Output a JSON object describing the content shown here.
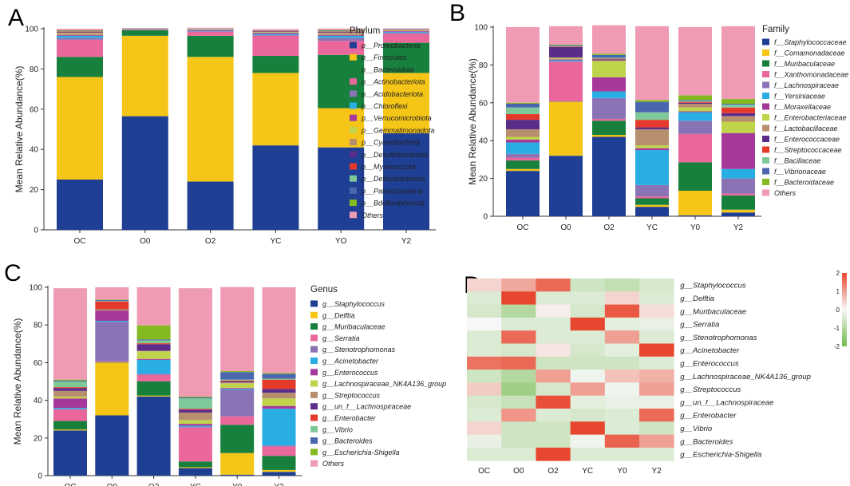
{
  "figure": {
    "panel_letters": [
      "A",
      "B",
      "C",
      "D"
    ]
  },
  "chart_data": [
    {
      "type": "bar",
      "stacked": true,
      "panel": "A",
      "title": "",
      "xlabel": "",
      "ylabel": "Mean Relative Abundance(%)",
      "ylim": [
        0,
        100
      ],
      "yticks": [
        0,
        20,
        40,
        60,
        80,
        100
      ],
      "legend_title": "Phylum",
      "legend_position": "right",
      "categories": [
        "OC",
        "O0",
        "O2",
        "YC",
        "YO",
        "Y2"
      ],
      "series": [
        {
          "name": "p__Proteobacteria",
          "color": "#1f3f94",
          "values": [
            25,
            56.5,
            24,
            42,
            41,
            48
          ]
        },
        {
          "name": "p__Firmicutes",
          "color": "#f5c518",
          "values": [
            51,
            40,
            62,
            36,
            19.5,
            30
          ]
        },
        {
          "name": "p__Bacteroidota",
          "color": "#17803d",
          "values": [
            10,
            2.8,
            10.5,
            8.5,
            26.5,
            15
          ]
        },
        {
          "name": "p__Actinobacteriota",
          "color": "#e9679b",
          "values": [
            8.5,
            0.3,
            2,
            10,
            7,
            4.5
          ]
        },
        {
          "name": "p__Acidobacteriota",
          "color": "#8a73b5",
          "values": [
            1,
            0.1,
            0.3,
            0.5,
            1.5,
            0.6
          ]
        },
        {
          "name": "p__Chloroflexi",
          "color": "#29aee3",
          "values": [
            1,
            0.1,
            0.2,
            0.5,
            1,
            0.4
          ]
        },
        {
          "name": "p__Verrucomicrobiota",
          "color": "#a6389a",
          "values": [
            0.5,
            0.05,
            0.2,
            0.5,
            0.5,
            0.3
          ]
        },
        {
          "name": "p__Gemmatimonadota",
          "color": "#bfd44a",
          "values": [
            0.5,
            0.05,
            0.1,
            0.3,
            0.5,
            0.3
          ]
        },
        {
          "name": "p__Cyanobacteria",
          "color": "#b88f6e",
          "values": [
            0.5,
            0.05,
            0.2,
            0.3,
            0.4,
            0.2
          ]
        },
        {
          "name": "p__Desulfobacterota",
          "color": "#5a2d8a",
          "values": [
            0.3,
            0.05,
            0.1,
            0.2,
            0.4,
            0.2
          ]
        },
        {
          "name": "p__Myxococcota",
          "color": "#e53a2b",
          "values": [
            0.3,
            0.05,
            0.1,
            0.2,
            0.3,
            0.1
          ]
        },
        {
          "name": "p__Deferribacterota",
          "color": "#7fc89a",
          "values": [
            0.2,
            0.05,
            0.1,
            0.1,
            0.3,
            0.1
          ]
        },
        {
          "name": "p__Patescibacteria",
          "color": "#4a66ae",
          "values": [
            0.2,
            0.05,
            0.1,
            0.1,
            0.3,
            0.1
          ]
        },
        {
          "name": "p__Bdellovibrionota",
          "color": "#84b91f",
          "values": [
            0.2,
            0.05,
            0.1,
            0.1,
            0.2,
            0.1
          ]
        },
        {
          "name": "Others",
          "color": "#ef9bb3",
          "values": [
            0.8,
            0.2,
            0.5,
            0.5,
            0.7,
            0.3
          ]
        }
      ]
    },
    {
      "type": "bar",
      "stacked": true,
      "panel": "B",
      "title": "",
      "xlabel": "",
      "ylabel": "Mean Relative Abundance(%)",
      "ylim": [
        0,
        100
      ],
      "yticks": [
        0,
        20,
        40,
        60,
        80,
        100
      ],
      "legend_title": "Family",
      "legend_position": "right",
      "categories": [
        "OC",
        "O0",
        "O2",
        "YC",
        "Y0",
        "Y2"
      ],
      "series": [
        {
          "name": "f__Staphylococcaceae",
          "color": "#1f3f94",
          "values": [
            24,
            32,
            42,
            5,
            0.5,
            2
          ]
        },
        {
          "name": "f__Comamonadaceae",
          "color": "#f5c518",
          "values": [
            1,
            28.5,
            1,
            1,
            13,
            1.5
          ]
        },
        {
          "name": "f__Muribaculaceae",
          "color": "#17803d",
          "values": [
            4.5,
            0.2,
            7.5,
            3.5,
            15,
            7.5
          ]
        },
        {
          "name": "f__Xanthomonadaceae",
          "color": "#e9679b",
          "values": [
            1.5,
            21,
            1,
            1,
            15,
            1
          ]
        },
        {
          "name": "f__Lachnospiraceae",
          "color": "#8a73b5",
          "values": [
            2,
            0.3,
            11,
            6,
            7,
            8
          ]
        },
        {
          "name": "f__Yersiniaceae",
          "color": "#29aee3",
          "values": [
            6,
            0.5,
            3.5,
            18.5,
            4.5,
            5
          ]
        },
        {
          "name": "f__Moraxellaceae",
          "color": "#a6389a",
          "values": [
            1.5,
            0.5,
            7.5,
            1,
            0.5,
            19
          ]
        },
        {
          "name": "f__Enterobacteriaceae",
          "color": "#bfd44a",
          "values": [
            1.5,
            0.5,
            8.5,
            1.5,
            2,
            6
          ]
        },
        {
          "name": "f__Lactobacillaceae",
          "color": "#b88f6e",
          "values": [
            4,
            0.5,
            0.5,
            8.5,
            2,
            3
          ]
        },
        {
          "name": "f__Enterococcaceae",
          "color": "#5a2d8a",
          "values": [
            5,
            5.5,
            0.5,
            1,
            0.5,
            1.5
          ]
        },
        {
          "name": "f__Streptococcaceae",
          "color": "#e53a2b",
          "values": [
            3,
            0.3,
            0.3,
            4,
            0.5,
            3
          ]
        },
        {
          "name": "f__Bacillaceae",
          "color": "#7fc89a",
          "values": [
            3.5,
            0.3,
            0.5,
            4,
            0.5,
            1.5
          ]
        },
        {
          "name": "f__Vibrionaceae",
          "color": "#4a66ae",
          "values": [
            2,
            0.4,
            1.5,
            5.5,
            0.5,
            0.5
          ]
        },
        {
          "name": "f__Bacteroidaceae",
          "color": "#84b91f",
          "values": [
            0.5,
            0.3,
            0.7,
            1,
            2.5,
            2.5
          ]
        },
        {
          "name": "Others",
          "color": "#ef9bb3",
          "values": [
            40,
            9.7,
            15,
            39,
            36,
            38.5
          ]
        }
      ]
    },
    {
      "type": "bar",
      "stacked": true,
      "panel": "C",
      "title": "",
      "xlabel": "",
      "ylabel": "Mean Relative Abundance(%)",
      "ylim": [
        0,
        100
      ],
      "yticks": [
        0,
        20,
        40,
        60,
        80,
        100
      ],
      "legend_title": "Genus",
      "legend_position": "right",
      "categories": [
        "OC",
        "O0",
        "O2",
        "YC",
        "Y0",
        "Y2"
      ],
      "series": [
        {
          "name": "g__Staphylococcus",
          "color": "#1f3f94",
          "values": [
            24,
            32,
            42,
            4,
            0.5,
            2
          ]
        },
        {
          "name": "g__Delftia",
          "color": "#f5c518",
          "values": [
            0.5,
            28,
            0.5,
            0.5,
            11.5,
            1
          ]
        },
        {
          "name": "g__Muribaculaceae",
          "color": "#17803d",
          "values": [
            4.5,
            0.2,
            7.5,
            3,
            15,
            7.5
          ]
        },
        {
          "name": "g__Serratia",
          "color": "#e9679b",
          "values": [
            6,
            0.5,
            3.5,
            18,
            4.5,
            5
          ]
        },
        {
          "name": "g__Stenotrophomonas",
          "color": "#8a73b5",
          "values": [
            0.5,
            21,
            0.5,
            0.5,
            14,
            0.5
          ]
        },
        {
          "name": "g__Acinetobacter",
          "color": "#29aee3",
          "values": [
            0.5,
            0.5,
            7.5,
            0.5,
            0.5,
            19.5
          ]
        },
        {
          "name": "g__Enterococcus",
          "color": "#a6389a",
          "values": [
            5,
            5.5,
            0.5,
            1,
            0.5,
            1.5
          ]
        },
        {
          "name": "g__Lachnospiraceae_NK4A136_group",
          "color": "#bfd44a",
          "values": [
            1,
            0.2,
            4,
            2,
            2.5,
            4
          ]
        },
        {
          "name": "g__Streptococcus",
          "color": "#b88f6e",
          "values": [
            3,
            0.3,
            0.3,
            4,
            0.5,
            3
          ]
        },
        {
          "name": "g__un_f__Lachnospiraceae",
          "color": "#5a2d8a",
          "values": [
            1.5,
            0.2,
            3.5,
            1.5,
            0.5,
            2
          ]
        },
        {
          "name": "g__Enterobacter",
          "color": "#e53a2b",
          "values": [
            0.5,
            4,
            0.5,
            0.5,
            0.5,
            5
          ]
        },
        {
          "name": "g__Vibrio",
          "color": "#7fc89a",
          "values": [
            3,
            0.3,
            1.5,
            5.5,
            0.5,
            0.5
          ]
        },
        {
          "name": "g__Bacteroides",
          "color": "#4a66ae",
          "values": [
            0.5,
            0.5,
            0.5,
            0.5,
            4,
            2.5
          ]
        },
        {
          "name": "g__Escherichia-Shigella",
          "color": "#84b91f",
          "values": [
            0.5,
            0.3,
            7.5,
            0.5,
            0.5,
            0.5
          ]
        },
        {
          "name": "Others",
          "color": "#ef9bb3",
          "values": [
            48.5,
            6.5,
            20.2,
            57.5,
            44.6,
            45.5
          ]
        }
      ]
    },
    {
      "type": "heatmap",
      "panel": "D",
      "title": "",
      "xlabel": "",
      "ylabel": "",
      "columns": [
        "OC",
        "O0",
        "O2",
        "YC",
        "Y0",
        "Y2"
      ],
      "rows": [
        "g__Staphylococcus",
        "g__Delftia",
        "g__Muribaculaceae",
        "g__Serratia",
        "g__Stenotrophomonas",
        "g__Acinetobacter",
        "g__Enterococcus",
        "g__Lachnospiraceae_NK4A136_group",
        "g__Streptococcus",
        "g__un_f__Lachnospiraceae",
        "g__Enterobacter",
        "g__Vibrio",
        "g__Bacteroides",
        "g__Escherichia-Shigella"
      ],
      "values": [
        [
          0.4,
          0.9,
          1.6,
          -0.6,
          -0.8,
          -0.5
        ],
        [
          -0.4,
          2.0,
          -0.4,
          -0.4,
          0.4,
          -0.4
        ],
        [
          -0.5,
          -1.0,
          0.1,
          -0.5,
          1.8,
          0.3
        ],
        [
          0.0,
          -0.4,
          -0.4,
          2.0,
          -0.3,
          -0.2
        ],
        [
          -0.4,
          1.6,
          -0.4,
          -0.4,
          1.0,
          -0.4
        ],
        [
          -0.4,
          -0.5,
          0.2,
          -0.5,
          -0.3,
          2.0
        ],
        [
          1.5,
          1.6,
          -0.6,
          -0.6,
          -0.6,
          -0.4
        ],
        [
          -0.6,
          -1.0,
          1.0,
          -0.1,
          0.6,
          0.8
        ],
        [
          0.5,
          -1.3,
          -0.5,
          1.0,
          -0.1,
          1.0
        ],
        [
          -0.5,
          -0.7,
          1.9,
          -0.3,
          -0.2,
          -0.2
        ],
        [
          -0.4,
          1.1,
          -0.4,
          -0.5,
          -0.4,
          1.6
        ],
        [
          0.4,
          -0.6,
          -0.6,
          2.0,
          -0.4,
          -0.6
        ],
        [
          -0.2,
          -0.6,
          -0.6,
          -0.1,
          1.7,
          1.0
        ],
        [
          -0.4,
          -0.4,
          2.0,
          -0.4,
          -0.4,
          -0.4
        ]
      ],
      "colorscale": {
        "min": -2,
        "max": 2,
        "ticks": [
          2,
          1,
          0,
          -1,
          -2
        ],
        "low_color": "#6fba4a",
        "mid_color": "#f7f7f7",
        "high_color": "#e8472f"
      }
    }
  ]
}
